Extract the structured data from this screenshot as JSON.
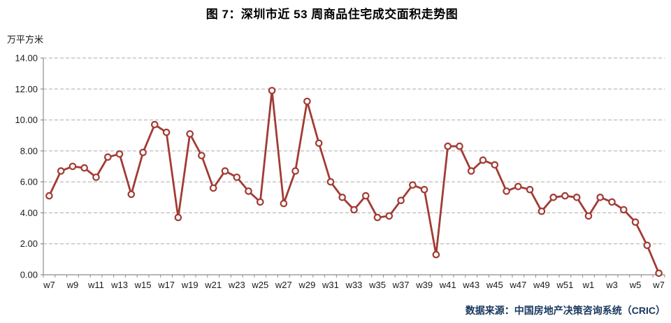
{
  "title": "图 7：深圳市近 53 周商品住宅成交面积走势图",
  "y_axis_label": "万平方米",
  "source": "数据来源：中国房地产决策咨询系统（CRIC）",
  "colors": {
    "line": "#A23B34",
    "marker_fill": "#FFFFFF",
    "grid": "#ABABAB",
    "axis": "#8C8C8C",
    "title": "#000000",
    "source_text": "#17375E",
    "tick_text": "#1A1A1A"
  },
  "chart_data": {
    "type": "line",
    "title": "图 7：深圳市近 53 周商品住宅成交面积走势图",
    "xlabel": "",
    "ylabel": "万平方米",
    "ylim": [
      0,
      14
    ],
    "y_ticks": [
      0,
      2,
      4,
      6,
      8,
      10,
      12,
      14
    ],
    "y_tick_decimals": 2,
    "grid": "horizontal-dashed",
    "legend": "none",
    "x_label_interval": 2,
    "x": [
      "w7",
      "w8",
      "w9",
      "w10",
      "w11",
      "w12",
      "w13",
      "w14",
      "w15",
      "w16",
      "w17",
      "w18",
      "w19",
      "w20",
      "w21",
      "w22",
      "w23",
      "w24",
      "w25",
      "w26",
      "w27",
      "w28",
      "w29",
      "w30",
      "w31",
      "w32",
      "w33",
      "w34",
      "w35",
      "w36",
      "w37",
      "w38",
      "w39",
      "w40",
      "w41",
      "w42",
      "w43",
      "w44",
      "w45",
      "w46",
      "w47",
      "w48",
      "w49",
      "w50",
      "w51",
      "w52",
      "w1",
      "w2",
      "w3",
      "w4",
      "w5",
      "w6",
      "w7"
    ],
    "x_tick_labels": [
      "w7",
      "w9",
      "w11",
      "w13",
      "w15",
      "w17",
      "w19",
      "w21",
      "w23",
      "w25",
      "w27",
      "w29",
      "w31",
      "w33",
      "w35",
      "w37",
      "w39",
      "w41",
      "w43",
      "w45",
      "w47",
      "w49",
      "w51",
      "w1",
      "w3",
      "w5",
      "w7"
    ],
    "values": [
      5.1,
      6.7,
      7.0,
      6.9,
      6.3,
      7.6,
      7.8,
      5.2,
      7.9,
      9.7,
      9.2,
      3.7,
      9.1,
      7.7,
      5.6,
      6.7,
      6.3,
      5.4,
      4.7,
      11.9,
      4.6,
      6.7,
      11.2,
      8.5,
      6.0,
      5.0,
      4.2,
      5.1,
      3.7,
      3.8,
      4.8,
      5.8,
      5.5,
      1.3,
      8.3,
      8.3,
      6.7,
      7.4,
      7.1,
      5.4,
      5.7,
      5.5,
      4.1,
      5.0,
      5.1,
      5.0,
      3.8,
      5.0,
      4.7,
      4.2,
      3.4,
      1.9,
      0.1
    ]
  }
}
